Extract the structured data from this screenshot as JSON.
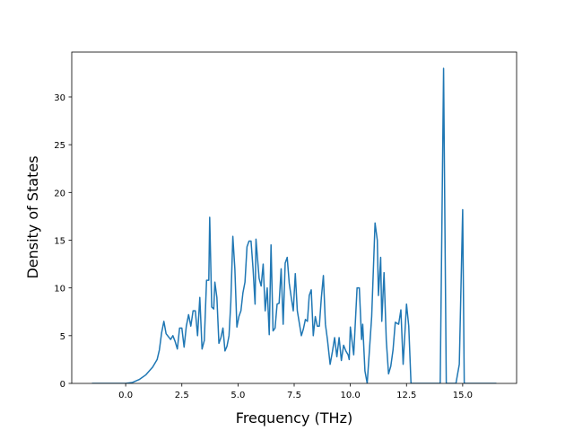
{
  "chart_data": {
    "type": "line",
    "xlabel": "Frequency (THz)",
    "ylabel": "Density of States",
    "xlim": [
      -2.4,
      17.4
    ],
    "ylim": [
      0,
      34.7
    ],
    "xticks": [
      {
        "value": 0,
        "label": "0.0"
      },
      2.5,
      {
        "value": 5,
        "label": "5.0"
      },
      7.5,
      {
        "value": 10,
        "label": "10.0"
      },
      12.5,
      {
        "value": 15,
        "label": "15.0"
      }
    ],
    "yticks": [
      0,
      5,
      10,
      15,
      20,
      25,
      30
    ],
    "series": [
      {
        "color": "#1f77b4",
        "x": [
          -1.5,
          0.0,
          0.3,
          0.6,
          0.9,
          1.2,
          1.4,
          1.5,
          1.6,
          1.7,
          1.8,
          2.0,
          2.1,
          2.2,
          2.3,
          2.4,
          2.5,
          2.6,
          2.7,
          2.8,
          2.9,
          3.0,
          3.1,
          3.2,
          3.3,
          3.4,
          3.5,
          3.6,
          3.7,
          3.74,
          3.83,
          3.92,
          3.97,
          4.06,
          4.15,
          4.24,
          4.33,
          4.42,
          4.51,
          4.6,
          4.68,
          4.77,
          4.86,
          4.95,
          5.04,
          5.13,
          5.22,
          5.31,
          5.4,
          5.49,
          5.58,
          5.67,
          5.76,
          5.8,
          5.94,
          6.03,
          6.12,
          6.21,
          6.3,
          6.39,
          6.47,
          6.56,
          6.65,
          6.74,
          6.83,
          6.92,
          7.01,
          7.1,
          7.19,
          7.28,
          7.37,
          7.46,
          7.55,
          7.64,
          7.82,
          7.91,
          8.0,
          8.09,
          8.17,
          8.26,
          8.35,
          8.44,
          8.53,
          8.62,
          8.71,
          8.8,
          8.89,
          8.98,
          9.1,
          9.2,
          9.3,
          9.4,
          9.5,
          9.6,
          9.7,
          9.8,
          9.9,
          9.95,
          10.0,
          10.15,
          10.3,
          10.4,
          10.5,
          10.55,
          10.65,
          10.75,
          10.95,
          11.1,
          11.2,
          11.25,
          11.35,
          11.4,
          11.5,
          11.6,
          11.7,
          11.8,
          11.9,
          12.0,
          12.15,
          12.25,
          12.35,
          12.5,
          12.6,
          12.7,
          14.0,
          14.15,
          14.27,
          14.7,
          14.85,
          15.0,
          15.07,
          16.5
        ],
        "values": [
          0,
          0,
          0.1,
          0.4,
          0.9,
          1.7,
          2.5,
          3.5,
          5.3,
          6.5,
          5.2,
          4.6,
          5.0,
          4.4,
          3.6,
          5.8,
          5.8,
          3.8,
          6.0,
          7.2,
          6.0,
          7.6,
          7.6,
          5.0,
          9.0,
          3.6,
          4.5,
          10.8,
          10.8,
          17.4,
          8.0,
          7.8,
          10.6,
          9.0,
          4.2,
          4.8,
          5.8,
          3.4,
          3.9,
          5.0,
          8.5,
          15.4,
          12.0,
          5.9,
          7.0,
          7.6,
          9.5,
          10.6,
          14.3,
          14.9,
          14.9,
          12.0,
          8.3,
          15.1,
          11.0,
          10.2,
          12.5,
          7.6,
          10.0,
          5.1,
          14.5,
          5.5,
          5.8,
          8.3,
          8.4,
          12.0,
          6.2,
          12.6,
          13.2,
          10.5,
          9.0,
          7.6,
          11.5,
          7.6,
          5.0,
          5.7,
          6.7,
          6.5,
          9.2,
          9.8,
          5.0,
          7.0,
          6.0,
          6.0,
          9.0,
          11.3,
          6.2,
          4.6,
          2.0,
          3.3,
          4.8,
          2.8,
          4.8,
          2.4,
          4.0,
          3.4,
          3.0,
          2.5,
          5.9,
          3.0,
          10.0,
          10.0,
          4.6,
          6.2,
          1.3,
          0,
          7.0,
          16.8,
          15.0,
          9.2,
          13.2,
          6.5,
          11.6,
          4.5,
          1.0,
          1.8,
          3.5,
          6.4,
          6.2,
          7.7,
          2.0,
          8.3,
          6.0,
          0,
          0,
          33.0,
          0,
          0,
          2.0,
          18.2,
          0,
          0
        ]
      }
    ]
  }
}
